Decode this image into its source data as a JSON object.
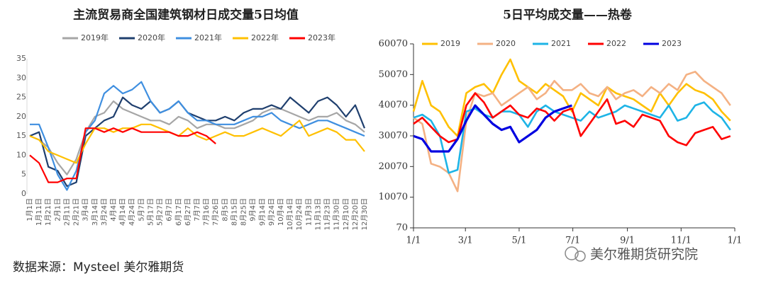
{
  "chart_data": [
    {
      "type": "line",
      "title": "主流贸易商全国建筑钢材日成交量5日均值",
      "categories": [
        "1月1日",
        "1月11日",
        "1月21日",
        "2月1日",
        "2月11日",
        "2月21日",
        "3月4日",
        "3月14日",
        "3月24日",
        "4月4日",
        "4月14日",
        "4月24日",
        "5月7日",
        "5月17日",
        "5月27日",
        "6月7日",
        "6月17日",
        "6月27日",
        "7月7日",
        "7月16日",
        "7月26日",
        "8月5日",
        "8月15日",
        "8月25日",
        "9月4日",
        "9月14日",
        "9月24日",
        "10月4日",
        "10月14日",
        "10月24日",
        "11月3日",
        "11月13日",
        "11月23日",
        "11月30日",
        "12月10日",
        "12月20日",
        "12月30日"
      ],
      "ylim": [
        0,
        35
      ],
      "yticks": [
        0,
        5,
        10,
        15,
        20,
        25,
        30,
        35
      ],
      "series": [
        {
          "name": "2019年",
          "color": "#a6a6a6",
          "values": [
            15,
            14,
            12,
            8,
            5,
            9,
            16,
            20,
            21,
            24,
            22,
            21,
            20,
            19,
            19,
            18,
            20,
            19,
            17,
            18,
            18,
            17,
            17,
            18,
            19,
            21,
            22,
            22,
            21,
            20,
            19,
            20,
            20,
            21,
            19,
            18,
            16
          ]
        },
        {
          "name": "2020年",
          "color": "#1f3f6e",
          "values": [
            15,
            16,
            7,
            6,
            2,
            3,
            15,
            17,
            19,
            20,
            25,
            23,
            22,
            24,
            21,
            22,
            24,
            21,
            20,
            19,
            19,
            20,
            19,
            21,
            22,
            22,
            23,
            22,
            25,
            23,
            21,
            24,
            25,
            23,
            20,
            23,
            17
          ]
        },
        {
          "name": "2021年",
          "color": "#3f8fe0",
          "values": [
            18,
            18,
            12,
            5,
            1,
            6,
            16,
            19,
            26,
            28,
            26,
            27,
            29,
            24,
            21,
            22,
            24,
            21,
            19,
            19,
            18,
            18,
            18,
            19,
            20,
            20,
            21,
            19,
            18,
            17,
            18,
            19,
            19,
            18,
            17,
            16,
            15
          ]
        },
        {
          "name": "2022年",
          "color": "#ffc000",
          "values": [
            15,
            14,
            11,
            10,
            9,
            8,
            13,
            17,
            17,
            16,
            17,
            17,
            18,
            18,
            17,
            16,
            15,
            17,
            15,
            14,
            15,
            16,
            15,
            15,
            16,
            17,
            16,
            15,
            17,
            19,
            15,
            16,
            17,
            16,
            14,
            14,
            11
          ]
        },
        {
          "name": "2023年",
          "color": "#ff0000",
          "values": [
            10,
            8,
            3,
            3,
            4,
            4,
            17,
            17,
            16,
            17,
            16,
            17,
            16,
            16,
            16,
            16,
            15,
            15,
            16,
            15,
            13,
            null,
            null,
            null,
            null,
            null,
            null,
            null,
            null,
            null,
            null,
            null,
            null,
            null,
            null,
            null,
            null
          ]
        }
      ]
    },
    {
      "type": "line",
      "title": "5日平均成交量——热卷",
      "x": [
        0,
        10,
        20,
        30,
        40,
        50,
        60,
        70,
        80,
        90,
        100,
        110,
        120,
        130,
        140,
        150,
        160,
        170,
        180,
        190,
        200,
        210,
        220,
        230,
        240,
        250,
        260,
        270,
        280,
        290,
        300,
        310,
        320,
        330,
        340,
        350,
        360
      ],
      "xlim": [
        0,
        365
      ],
      "xticks": [
        {
          "value": 0,
          "label": "1/1"
        },
        {
          "value": 59,
          "label": "3/1"
        },
        {
          "value": 120,
          "label": "5/1"
        },
        {
          "value": 181,
          "label": "7/1"
        },
        {
          "value": 243,
          "label": "9/1"
        },
        {
          "value": 304,
          "label": "11/1"
        },
        {
          "value": 365,
          "label": "1/1"
        }
      ],
      "ylim": [
        70,
        60070
      ],
      "yticks": [
        70,
        10070,
        20070,
        30070,
        40070,
        50070,
        60070
      ],
      "series": [
        {
          "name": "2019",
          "color": "#ffc000",
          "values": [
            38000,
            48000,
            40000,
            38000,
            33000,
            30000,
            44000,
            46000,
            47000,
            44000,
            50000,
            55000,
            48000,
            46000,
            44000,
            47000,
            45000,
            43000,
            38000,
            44000,
            42000,
            40000,
            46000,
            44000,
            43000,
            42000,
            40000,
            38000,
            44000,
            40000,
            44000,
            47000,
            45000,
            44000,
            42000,
            38000,
            35000
          ]
        },
        {
          "name": "2020",
          "color": "#f4b183",
          "values": [
            36000,
            34000,
            21000,
            20000,
            18000,
            12000,
            35000,
            44000,
            43000,
            44000,
            40000,
            42000,
            44000,
            46000,
            42000,
            44000,
            48000,
            45000,
            45000,
            47000,
            44000,
            43000,
            46000,
            42000,
            44000,
            45000,
            43000,
            46000,
            44000,
            47000,
            45000,
            50000,
            51000,
            48000,
            46000,
            44000,
            40000
          ]
        },
        {
          "name": "2021",
          "color": "#1eb4e6",
          "values": [
            36000,
            37000,
            35000,
            30000,
            18000,
            19000,
            38000,
            39000,
            37000,
            36000,
            38000,
            38000,
            37000,
            33000,
            38000,
            40000,
            38000,
            37000,
            36000,
            35000,
            38000,
            36000,
            37000,
            38000,
            40000,
            39000,
            38000,
            37000,
            36000,
            40000,
            35000,
            36000,
            40000,
            41000,
            38000,
            36000,
            32000
          ]
        },
        {
          "name": "2022",
          "color": "#ff0000",
          "values": [
            34000,
            36000,
            33000,
            30000,
            28000,
            29000,
            40000,
            44000,
            41000,
            36000,
            38000,
            40000,
            37000,
            36000,
            39000,
            38000,
            35000,
            38000,
            39000,
            30000,
            34000,
            38000,
            42000,
            34000,
            35000,
            33000,
            37000,
            36000,
            35000,
            30000,
            28000,
            27000,
            31000,
            32000,
            33000,
            29000,
            30000
          ]
        },
        {
          "name": "2023",
          "color": "#0000e0",
          "values": [
            30000,
            29000,
            25000,
            25000,
            25000,
            29000,
            35000,
            40000,
            37000,
            34000,
            32000,
            33000,
            28000,
            30000,
            32000,
            36000,
            38000,
            39000,
            40000,
            null,
            null,
            null,
            null,
            null,
            null,
            null,
            null,
            null,
            null,
            null,
            null,
            null,
            null,
            null,
            null,
            null,
            null
          ]
        }
      ]
    }
  ],
  "source": "数据来源：Mysteel  美尔雅期货",
  "watermark": "美尔雅期货研究院"
}
